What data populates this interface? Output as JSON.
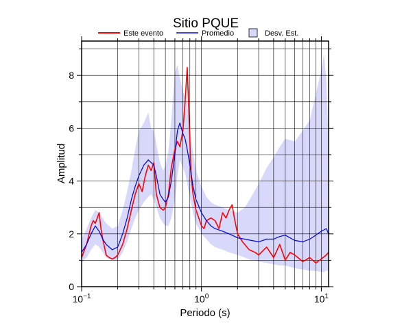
{
  "chart_data": {
    "type": "line",
    "title": "Sitio PQUE",
    "xlabel": "Periodo (s)",
    "ylabel": "Amplitud",
    "xscale": "log",
    "xlim": [
      0.1,
      11.5
    ],
    "ylim": [
      0,
      9.3
    ],
    "grid": true,
    "legend_position": "top",
    "x_ticks": [
      {
        "value": 0.1,
        "base": "10",
        "exp": "−1"
      },
      {
        "value": 1,
        "base": "10",
        "exp": "0"
      },
      {
        "value": 10,
        "base": "10",
        "exp": "1"
      }
    ],
    "y_ticks": [
      {
        "value": 0,
        "label": "0"
      },
      {
        "value": 2,
        "label": "2"
      },
      {
        "value": 4,
        "label": "4"
      },
      {
        "value": 6,
        "label": "6"
      },
      {
        "value": 8,
        "label": "8"
      }
    ],
    "legend": {
      "event": "Este evento",
      "mean": "Promedio",
      "std": "Desv. Est."
    },
    "colors": {
      "event": "#ff0000",
      "mean": "#0000dd",
      "band": "#d8d8fa"
    },
    "series": [
      {
        "key": "event",
        "x": [
          0.1,
          0.11,
          0.12,
          0.125,
          0.13,
          0.135,
          0.14,
          0.145,
          0.15,
          0.155,
          0.16,
          0.17,
          0.18,
          0.19,
          0.2,
          0.22,
          0.24,
          0.26,
          0.28,
          0.3,
          0.32,
          0.34,
          0.36,
          0.38,
          0.4,
          0.42,
          0.45,
          0.48,
          0.5,
          0.53,
          0.56,
          0.6,
          0.63,
          0.66,
          0.7,
          0.73,
          0.76,
          0.78,
          0.8,
          0.82,
          0.85,
          0.9,
          0.95,
          1.0,
          1.05,
          1.1,
          1.2,
          1.3,
          1.4,
          1.5,
          1.6,
          1.7,
          1.8,
          1.9,
          2.0,
          2.2,
          2.5,
          2.8,
          3.0,
          3.5,
          4.0,
          4.5,
          5.0,
          5.5,
          6.0,
          7.0,
          8.0,
          9.0,
          10.0,
          11.0,
          11.5
        ],
        "y": [
          1.1,
          1.6,
          2.3,
          2.5,
          2.4,
          2.6,
          2.8,
          2.2,
          1.8,
          1.5,
          1.2,
          1.1,
          1.05,
          1.1,
          1.2,
          1.6,
          2.2,
          2.9,
          3.5,
          3.9,
          3.6,
          4.2,
          4.6,
          4.4,
          4.7,
          3.5,
          3.0,
          2.9,
          3.0,
          3.5,
          4.5,
          5.2,
          5.5,
          5.3,
          5.9,
          7.0,
          8.3,
          7.0,
          5.5,
          4.2,
          3.5,
          2.9,
          2.6,
          2.3,
          2.2,
          2.5,
          2.6,
          2.5,
          2.2,
          2.8,
          2.6,
          2.9,
          3.1,
          2.5,
          2.0,
          1.7,
          1.4,
          1.3,
          1.2,
          1.5,
          1.1,
          1.6,
          1.0,
          1.3,
          1.2,
          0.95,
          1.1,
          0.9,
          1.05,
          1.2,
          1.3
        ]
      },
      {
        "key": "mean",
        "x": [
          0.1,
          0.11,
          0.12,
          0.13,
          0.14,
          0.15,
          0.16,
          0.18,
          0.2,
          0.22,
          0.24,
          0.26,
          0.28,
          0.3,
          0.33,
          0.36,
          0.38,
          0.4,
          0.42,
          0.45,
          0.48,
          0.5,
          0.53,
          0.56,
          0.6,
          0.63,
          0.66,
          0.7,
          0.73,
          0.76,
          0.8,
          0.85,
          0.9,
          1.0,
          1.1,
          1.2,
          1.3,
          1.5,
          1.7,
          2.0,
          2.3,
          2.6,
          3.0,
          3.5,
          4.0,
          4.5,
          5.0,
          6.0,
          7.0,
          8.0,
          9.0,
          10.0,
          10.5,
          11.0,
          11.5
        ],
        "y": [
          1.3,
          1.6,
          2.0,
          2.3,
          2.1,
          1.8,
          1.6,
          1.4,
          1.5,
          2.0,
          2.6,
          3.3,
          3.8,
          4.2,
          4.6,
          4.8,
          4.7,
          4.6,
          4.2,
          3.5,
          3.3,
          3.2,
          3.4,
          4.0,
          5.0,
          5.9,
          6.2,
          5.8,
          5.6,
          5.2,
          4.6,
          3.8,
          3.3,
          2.8,
          2.5,
          2.3,
          2.2,
          2.1,
          2.0,
          1.85,
          1.8,
          1.75,
          1.7,
          1.8,
          1.8,
          1.9,
          1.95,
          1.75,
          1.7,
          1.8,
          1.95,
          2.1,
          2.15,
          2.2,
          2.0
        ]
      }
    ],
    "std_band": {
      "x": [
        0.1,
        0.11,
        0.12,
        0.13,
        0.14,
        0.15,
        0.16,
        0.18,
        0.2,
        0.22,
        0.24,
        0.26,
        0.28,
        0.3,
        0.33,
        0.36,
        0.38,
        0.4,
        0.42,
        0.45,
        0.48,
        0.5,
        0.53,
        0.56,
        0.6,
        0.63,
        0.66,
        0.7,
        0.73,
        0.76,
        0.8,
        0.85,
        0.9,
        1.0,
        1.1,
        1.2,
        1.3,
        1.5,
        1.7,
        2.0,
        2.3,
        2.6,
        3.0,
        3.5,
        4.0,
        4.5,
        5.0,
        6.0,
        7.0,
        8.0,
        9.0,
        10.0,
        10.5,
        11.0,
        11.5
      ],
      "upper": [
        1.8,
        2.2,
        2.6,
        2.9,
        2.8,
        2.6,
        2.4,
        2.2,
        2.3,
        2.9,
        3.6,
        4.4,
        5.2,
        5.9,
        6.2,
        6.6,
        6.0,
        5.9,
        5.4,
        4.7,
        4.4,
        4.6,
        5.1,
        6.3,
        8.1,
        8.4,
        7.9,
        7.4,
        7.2,
        6.9,
        6.0,
        5.1,
        4.4,
        3.8,
        3.4,
        3.2,
        3.1,
        3.0,
        2.9,
        2.8,
        3.0,
        3.4,
        3.9,
        4.5,
        4.9,
        5.3,
        5.6,
        5.5,
        5.9,
        6.3,
        7.3,
        8.2,
        8.8,
        7.9,
        5.5
      ],
      "lower": [
        0.9,
        1.1,
        1.4,
        1.6,
        1.5,
        1.3,
        1.1,
        1.0,
        1.0,
        1.3,
        1.7,
        2.2,
        2.6,
        2.9,
        3.2,
        3.4,
        3.5,
        3.3,
        3.0,
        2.6,
        2.4,
        2.3,
        2.3,
        2.6,
        3.3,
        4.2,
        4.8,
        4.5,
        4.3,
        3.9,
        3.4,
        2.8,
        2.4,
        2.0,
        1.8,
        1.6,
        1.5,
        1.4,
        1.3,
        1.2,
        1.1,
        1.0,
        0.95,
        0.9,
        0.85,
        0.8,
        0.8,
        0.7,
        0.65,
        0.6,
        0.6,
        0.55,
        0.55,
        0.6,
        0.6
      ]
    }
  }
}
